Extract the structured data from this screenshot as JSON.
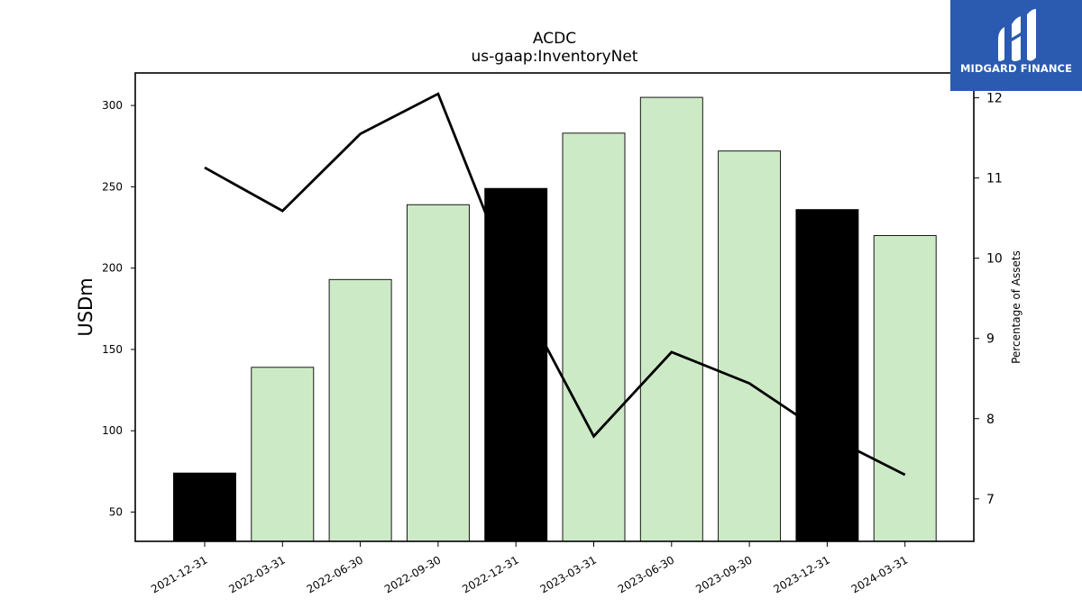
{
  "logo": {
    "text": "MIDGARD FINANCE",
    "color": "#2b5bb0"
  },
  "chart_data": {
    "type": "bar",
    "title": "ACDC",
    "subtitle": "us-gaap:InventoryNet",
    "ylabel": "USDm",
    "ylabel_right": "Percentage of Assets",
    "categories": [
      "2021-12-31",
      "2022-03-31",
      "2022-06-30",
      "2022-09-30",
      "2022-12-31",
      "2023-03-31",
      "2023-06-30",
      "2023-09-30",
      "2023-12-31",
      "2024-03-31"
    ],
    "series": [
      {
        "type": "bar",
        "axis": "left",
        "values": [
          74,
          139,
          193,
          239,
          249,
          283,
          305,
          272,
          236,
          220
        ],
        "colors": [
          "#000000",
          "#cdeac7",
          "#cdeac7",
          "#cdeac7",
          "#000000",
          "#cdeac7",
          "#cdeac7",
          "#cdeac7",
          "#000000",
          "#cdeac7"
        ]
      },
      {
        "type": "line",
        "axis": "right",
        "color": "#000000",
        "values": [
          11.13,
          10.59,
          11.55,
          12.05,
          9.61,
          7.78,
          8.83,
          8.44,
          7.79,
          7.3
        ]
      }
    ],
    "ylim": [
      32,
      320
    ],
    "yticks": [
      50,
      100,
      150,
      200,
      250,
      300
    ],
    "y2lim": [
      6.47,
      12.31
    ],
    "y2ticks": [
      7,
      8,
      9,
      10,
      11,
      12
    ]
  }
}
